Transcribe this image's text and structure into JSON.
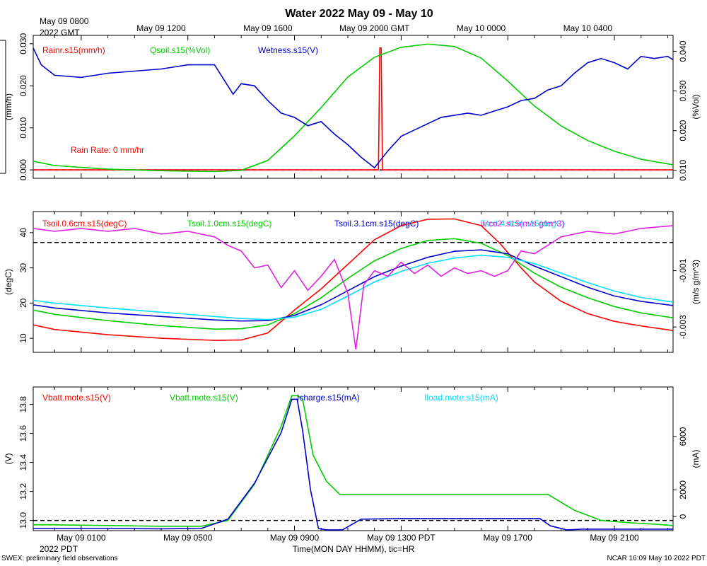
{
  "title": "Water 2022 May 09 - May 10",
  "top_axis": {
    "start_label_line1": "May 09 0800",
    "start_label_line2": "2022 GMT",
    "ticks": [
      "May 09 1200",
      "May 09 1600",
      "May 09 2000 GMT",
      "May 10 0000",
      "May 10 0400"
    ]
  },
  "bottom_axis": {
    "ticks": [
      "May 09 0100",
      "May 09 0500",
      "May 09 0900",
      "May 09 1300 PDT",
      "May 09 1700",
      "May 09 2100"
    ],
    "year_label": "2022 PDT",
    "xlabel": "Time(MON DAY HHMM), tic=HR"
  },
  "footer_left": "SWEX: preliminary field observations",
  "footer_right": "NCAR 16:09 May 10 2022 PDT",
  "colors": {
    "red": "#ff0000",
    "green": "#00cc00",
    "blue": "#0000cc",
    "cyan": "#00e0ff",
    "magenta": "#e020e0",
    "black": "#000000"
  },
  "chart_data": [
    {
      "type": "line",
      "x_unit": "hours since May 09 0000 PDT",
      "xlim": [
        23.2,
        47.2
      ],
      "ylabel_left": "(mm/h)",
      "ylabel_right": "(%Vol)",
      "ylim_left": [
        -0.002,
        0.032
      ],
      "ylim_right": [
        0.008,
        0.044
      ],
      "yticks_left": [
        "0.000",
        "0.010",
        "0.020",
        "0.030"
      ],
      "yticks_right": [
        "0.010",
        "0.020",
        "0.030",
        "0.040"
      ],
      "annotation": "Rain Rate: 0 mm/hr",
      "series": [
        {
          "name": "Rainr.s15(mm/h)",
          "color": "red",
          "axis": "left",
          "x": [
            23.2,
            36.15,
            36.2,
            36.25,
            36.3,
            47.2
          ],
          "y": [
            0,
            0,
            0.029,
            0.029,
            0,
            0
          ]
        },
        {
          "name": "Qsoil.s15(%Vol)",
          "color": "green",
          "axis": "right",
          "x": [
            23.2,
            24,
            26,
            28,
            30,
            31,
            32,
            33,
            34,
            35,
            36,
            37,
            38,
            39,
            40,
            41,
            42,
            43,
            44,
            45,
            46,
            47.2
          ],
          "y": [
            0.0123,
            0.0112,
            0.0103,
            0.0099,
            0.0097,
            0.01,
            0.0125,
            0.0187,
            0.0258,
            0.0335,
            0.0385,
            0.041,
            0.0418,
            0.0412,
            0.0383,
            0.0325,
            0.0262,
            0.0212,
            0.0175,
            0.0148,
            0.0128,
            0.0114
          ]
        },
        {
          "name": "Wetness.s15(V)",
          "color": "blue",
          "axis": "left",
          "x": [
            23.2,
            23.5,
            24,
            25,
            26,
            27,
            28,
            29,
            30,
            30.7,
            31,
            31.5,
            32,
            32.5,
            33,
            33.5,
            34,
            34.5,
            35,
            35.5,
            36,
            36.5,
            37,
            37.5,
            38,
            38.5,
            39,
            39.5,
            40,
            40.5,
            41,
            41.5,
            42,
            42.5,
            43,
            43.5,
            44,
            44.5,
            45,
            45.5,
            46,
            46.5,
            47,
            47.2
          ],
          "y": [
            0.029,
            0.025,
            0.0225,
            0.022,
            0.023,
            0.0235,
            0.024,
            0.025,
            0.025,
            0.018,
            0.0205,
            0.02,
            0.0165,
            0.0135,
            0.0125,
            0.0105,
            0.0115,
            0.0085,
            0.006,
            0.003,
            0.0005,
            0.0045,
            0.008,
            0.0095,
            0.011,
            0.0125,
            0.013,
            0.0135,
            0.013,
            0.014,
            0.015,
            0.0165,
            0.017,
            0.019,
            0.02,
            0.023,
            0.0255,
            0.0265,
            0.0255,
            0.024,
            0.027,
            0.0265,
            0.027,
            0.0262
          ]
        }
      ]
    },
    {
      "type": "line",
      "x_unit": "hours since May 09 0000 PDT",
      "xlim": [
        23.2,
        47.2
      ],
      "ylabel_left": "(degC)",
      "ylabel_right": "(m/s g/m^3)",
      "ylim_left": [
        6,
        46
      ],
      "ylim_right": [
        -0.0039,
        0.0011
      ],
      "yticks_left": [
        "10",
        "20",
        "30",
        "40"
      ],
      "yticks_right": [
        "-0.003",
        "-0.001"
      ],
      "ref_line_value_right": 0,
      "series": [
        {
          "name": "Tsoil.0.6cm.s15(degC)",
          "color": "red",
          "axis": "left",
          "x": [
            23.2,
            24,
            26,
            28,
            30,
            31,
            32,
            33,
            34,
            35,
            36,
            37,
            38,
            39,
            40,
            40.7,
            41.5,
            42,
            43,
            44,
            45,
            46,
            47.2
          ],
          "y": [
            13.8,
            12.5,
            11,
            10,
            9.4,
            9.5,
            11.5,
            18,
            24,
            31,
            38,
            42,
            43.8,
            43.9,
            42,
            37,
            30,
            26,
            20.5,
            17,
            14.8,
            13.5,
            12.2
          ]
        },
        {
          "name": "Tsoil.1.0cm.s15(degC)",
          "color": "green",
          "axis": "left",
          "x": [
            23.2,
            24,
            26,
            28,
            30,
            31,
            32,
            33,
            34,
            35,
            36,
            37,
            38,
            39,
            40,
            41,
            42,
            43,
            44,
            45,
            46,
            47.2
          ],
          "y": [
            18,
            16.8,
            15,
            13.6,
            12.6,
            12.7,
            13.8,
            17,
            21.5,
            27,
            32,
            35.5,
            37.8,
            38.3,
            37,
            33.5,
            28.5,
            24.5,
            21.5,
            19,
            17.2,
            15.8
          ]
        },
        {
          "name": "Tsoil.3.1cm.s15(degC)",
          "color": "blue",
          "axis": "left",
          "x": [
            23.2,
            24,
            26,
            28,
            30,
            31,
            32,
            33,
            34,
            35,
            36,
            37,
            38,
            39,
            40,
            41,
            42,
            43,
            44,
            45,
            46,
            47.2
          ],
          "y": [
            19.5,
            18.6,
            17.2,
            16.2,
            15.2,
            14.9,
            15,
            16.5,
            19.5,
            23.5,
            27.5,
            30.5,
            33,
            34.7,
            35.1,
            34,
            30.5,
            27.5,
            24.5,
            22,
            20.5,
            19.3
          ]
        },
        {
          "name": "Tsoil.4.4cm.s15(degC)",
          "color": "cyan",
          "axis": "left",
          "x": [
            23.2,
            24,
            26,
            28,
            30,
            31,
            32,
            33,
            34,
            35,
            36,
            37,
            38,
            39,
            40,
            41,
            42,
            43,
            44,
            45,
            46,
            47.2
          ],
          "y": [
            20.8,
            20,
            18.6,
            17.4,
            16.2,
            15.6,
            15.3,
            16,
            18.2,
            22,
            26,
            29,
            31.3,
            32.8,
            33.6,
            33,
            31.2,
            28.5,
            25.8,
            23.4,
            21.6,
            20.3
          ]
        },
        {
          "name": "w'co2'.s15(m/s g/m^3)",
          "color": "magenta",
          "axis": "right",
          "x": [
            23.2,
            24,
            25,
            26,
            27,
            28,
            29,
            30,
            30.5,
            31,
            31.5,
            32,
            32.5,
            33,
            33.5,
            34,
            34.5,
            35,
            35.3,
            35.6,
            36,
            36.5,
            37,
            37.5,
            38,
            38.5,
            39,
            39.5,
            40,
            40.5,
            41,
            41.5,
            42,
            43,
            44,
            45,
            46,
            47.2
          ],
          "y": [
            0.0005,
            0.0004,
            0.0005,
            0.0004,
            0.0005,
            0.0003,
            0.0004,
            0.0002,
            -0.0001,
            -0.0003,
            -0.0009,
            -0.0008,
            -0.0016,
            -0.001,
            -0.0017,
            -0.0012,
            -0.0006,
            -0.0018,
            -0.0038,
            -0.0015,
            -0.001,
            -0.0012,
            -0.0007,
            -0.0011,
            -0.0008,
            -0.0012,
            -0.0009,
            -0.0011,
            -0.001,
            -0.0012,
            -0.001,
            -0.0003,
            -0.0004,
            0.0002,
            0.0004,
            0.0003,
            0.0005,
            0.0006
          ]
        }
      ]
    },
    {
      "type": "line",
      "x_unit": "hours since May 09 0000 PDT",
      "xlim": [
        23.2,
        47.2
      ],
      "ylabel_left": "(V)",
      "ylabel_right": "(mA)",
      "ylim_left": [
        12.93,
        13.92
      ],
      "ylim_right": [
        -1060,
        9720
      ],
      "yticks_left": [
        "13.0",
        "13.2",
        "13.4",
        "13.6",
        "13.8"
      ],
      "yticks_right": [
        "0",
        "2000",
        "6000"
      ],
      "ref_line_value_left": 13.0,
      "series": [
        {
          "name": "Vbatt.mote.s15(V)",
          "color": "red",
          "axis": "left",
          "x": [
            23.2,
            47.2
          ],
          "y": [
            null,
            null
          ]
        },
        {
          "name": "Vbatt.mote.s15(V)",
          "color": "green",
          "axis": "left",
          "x": [
            23.2,
            24,
            26,
            28,
            29.5,
            30.5,
            31.5,
            32.5,
            32.9,
            33.1,
            33.3,
            33.7,
            34.2,
            34.7,
            35.5,
            37,
            39,
            41,
            42.5,
            43.5,
            44.5,
            45.5,
            46.5,
            47.2
          ],
          "y": [
            12.97,
            12.97,
            12.965,
            12.96,
            12.96,
            13.0,
            13.25,
            13.65,
            13.86,
            13.86,
            13.84,
            13.45,
            13.27,
            13.18,
            13.18,
            13.18,
            13.18,
            13.18,
            13.18,
            13.07,
            13.0,
            12.985,
            12.975,
            12.965
          ]
        },
        {
          "name": "Icharge.s15(mA)",
          "color": "blue",
          "axis": "right",
          "x": [
            23.2,
            24,
            26,
            28,
            29.5,
            30.5,
            31.5,
            32.5,
            32.9,
            33.1,
            33.3,
            33.6,
            33.9,
            34.2,
            34.8,
            35.5,
            37,
            39,
            41,
            42.2,
            42.6,
            43.2,
            43.8,
            44.5,
            45.5,
            46.5,
            47.2
          ],
          "y": [
            -900,
            -900,
            -900,
            -920,
            -900,
            -200,
            2500,
            6300,
            8800,
            8800,
            6500,
            2000,
            -900,
            -1000,
            -1000,
            -200,
            -150,
            -150,
            -150,
            -150,
            -700,
            -1000,
            -950,
            -950,
            -950,
            -950,
            -950
          ]
        },
        {
          "name": "Iload.mote.s15(mA)",
          "color": "cyan",
          "axis": "right",
          "x": [
            23.2,
            47.2
          ],
          "y": [
            null,
            null
          ]
        }
      ]
    }
  ]
}
